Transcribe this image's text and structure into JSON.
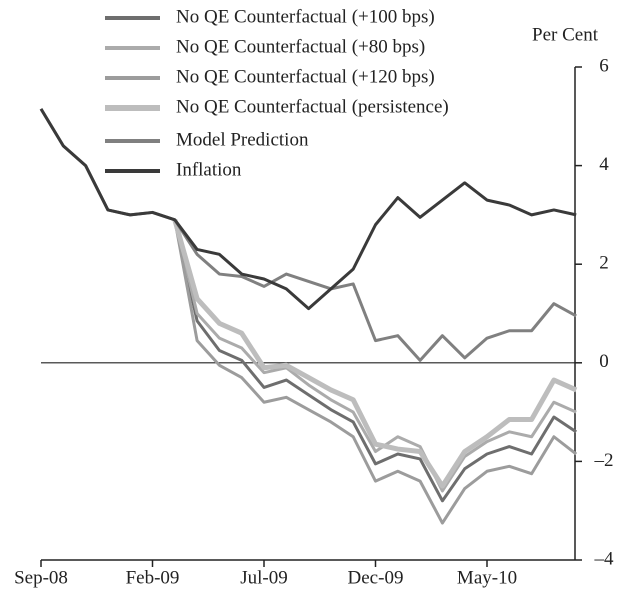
{
  "chart_data": {
    "type": "line",
    "y_axis_label": "Per Cent",
    "categories": [
      "Sep-08",
      null,
      null,
      null,
      null,
      "Feb-09",
      null,
      null,
      null,
      null,
      "Jul-09",
      null,
      null,
      null,
      null,
      "Dec-09",
      null,
      null,
      null,
      null,
      "May-10",
      null,
      null,
      null,
      null
    ],
    "series": [
      {
        "name": "No QE Counterfactual (+100 bps)",
        "color": "#6e6e6e",
        "width": 3,
        "values": [
          null,
          null,
          null,
          null,
          null,
          null,
          2.9,
          0.85,
          0.25,
          0.05,
          -0.5,
          -0.35,
          -0.65,
          -0.95,
          -1.2,
          -2.05,
          -1.85,
          -1.95,
          -2.8,
          -2.15,
          -1.85,
          -1.7,
          -1.85,
          -1.1,
          -1.4
        ]
      },
      {
        "name": "No QE Counterfactual (+80 bps)",
        "color": "#ababab",
        "width": 3,
        "values": [
          null,
          null,
          null,
          null,
          null,
          null,
          2.9,
          1.0,
          0.5,
          0.3,
          -0.2,
          -0.1,
          -0.45,
          -0.75,
          -1.0,
          -1.8,
          -1.5,
          -1.7,
          -2.6,
          -1.9,
          -1.6,
          -1.4,
          -1.5,
          -0.8,
          -1.0
        ]
      },
      {
        "name": "No QE Counterfactual (+120 bps)",
        "color": "#9c9c9c",
        "width": 3,
        "values": [
          null,
          null,
          null,
          null,
          null,
          null,
          2.9,
          0.45,
          -0.05,
          -0.3,
          -0.8,
          -0.7,
          -0.95,
          -1.2,
          -1.5,
          -2.4,
          -2.2,
          -2.4,
          -3.25,
          -2.55,
          -2.2,
          -2.1,
          -2.25,
          -1.5,
          -1.85
        ]
      },
      {
        "name": "No QE Counterfactual (persistence)",
        "color": "#bdbdbd",
        "width": 5,
        "values": [
          null,
          null,
          null,
          null,
          null,
          null,
          2.9,
          1.3,
          0.8,
          0.6,
          -0.1,
          -0.05,
          -0.3,
          -0.55,
          -0.75,
          -1.65,
          -1.75,
          -1.8,
          -2.5,
          -1.8,
          -1.5,
          -1.15,
          -1.15,
          -0.35,
          -0.55
        ]
      },
      {
        "name": "Model Prediction",
        "color": "#808080",
        "width": 3,
        "values": [
          5.15,
          4.4,
          4.0,
          3.1,
          3.0,
          3.05,
          2.9,
          2.2,
          1.8,
          1.75,
          1.55,
          1.8,
          1.65,
          1.5,
          1.6,
          0.45,
          0.55,
          0.05,
          0.55,
          0.1,
          0.5,
          0.65,
          0.65,
          1.2,
          0.95
        ]
      },
      {
        "name": "Inflation",
        "color": "#3a3a3a",
        "width": 3,
        "values": [
          5.15,
          4.4,
          4.0,
          3.1,
          3.0,
          3.05,
          2.9,
          2.3,
          2.2,
          1.8,
          1.7,
          1.5,
          1.1,
          1.5,
          1.9,
          2.8,
          3.35,
          2.95,
          3.3,
          3.65,
          3.3,
          3.2,
          3.0,
          3.1,
          3.0
        ]
      }
    ],
    "ylim": [
      -4,
      6
    ],
    "yticks": [
      {
        "value": -4,
        "label": "–4"
      },
      {
        "value": -2,
        "label": "–2"
      },
      0,
      2,
      4,
      6
    ],
    "zero_line": true
  }
}
